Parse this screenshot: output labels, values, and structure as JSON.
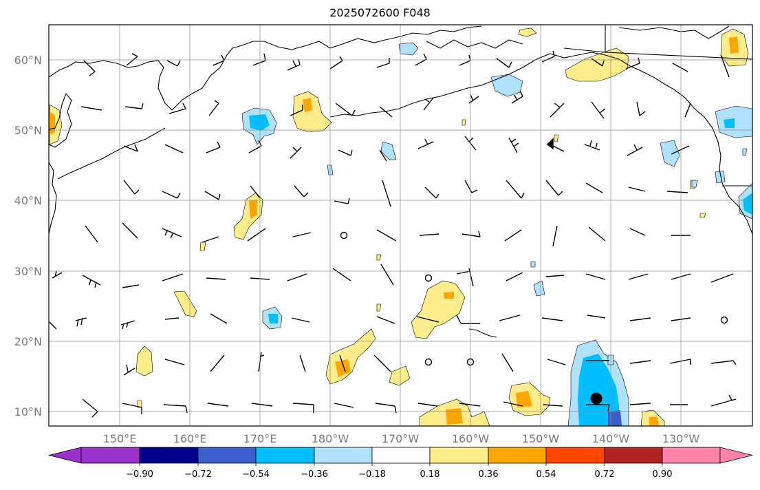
{
  "title": "2025072600 F048",
  "lon_labels": [
    "150°E",
    "160°E",
    "170°E",
    "180°W",
    "170°W",
    "160°W",
    "150°W",
    "140°W",
    "130°W"
  ],
  "lat_labels": [
    "60°N",
    "50°N",
    "40°N",
    "30°N",
    "20°N",
    "10°N"
  ],
  "colorbar": {
    "ticks": [
      "−0.90",
      "−0.72",
      "−0.54",
      "−0.36",
      "−0.18",
      "0.18",
      "0.36",
      "0.54",
      "0.72",
      "0.90"
    ],
    "colors": [
      "#9932cc",
      "#00008b",
      "#3a5fcd",
      "#00bfff",
      "#b0e2ff",
      "#ffffff",
      "#ffec8b",
      "#ffa500",
      "#ff4500",
      "#b22222",
      "#ff82ab"
    ]
  }
}
